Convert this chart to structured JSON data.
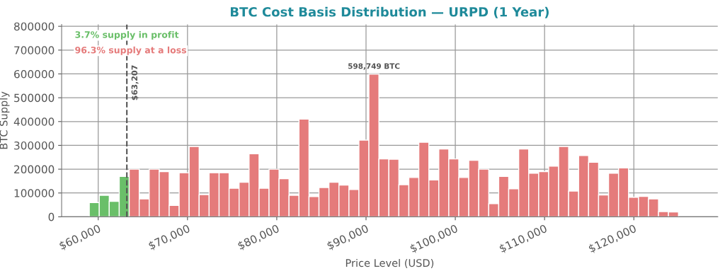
{
  "chart_data": {
    "type": "histogram",
    "title": "BTC Cost Basis Distribution — URPD (1 Year)",
    "xlabel": "Price Level (USD)",
    "ylabel": "BTC Supply",
    "bins": [
      59000,
      60119,
      61237,
      62356,
      63475,
      64593,
      65712,
      66831,
      67949,
      69068,
      70186,
      71305,
      72424,
      73542,
      74661,
      75780,
      76898,
      78017,
      79136,
      80254,
      81373,
      82492,
      83610,
      84729,
      85847,
      86966,
      88085,
      89203,
      90322,
      91441,
      92559,
      93678,
      94797,
      95915,
      97034,
      98153,
      99271,
      100390,
      101508,
      102627,
      103746,
      104864,
      105983,
      107102,
      108220,
      109339,
      110458,
      111576,
      112695,
      113814,
      114932,
      116051,
      117169,
      118288,
      119407,
      120525,
      121644,
      122763,
      123881,
      125000
    ],
    "values": [
      60000,
      90000,
      65000,
      170000,
      200000,
      75000,
      200000,
      190000,
      48000,
      185000,
      295000,
      93000,
      185000,
      185000,
      120000,
      145000,
      265000,
      120000,
      200000,
      160000,
      90000,
      410000,
      85000,
      123000,
      145000,
      133000,
      115000,
      322000,
      598749,
      243000,
      242000,
      135000,
      165000,
      313000,
      155000,
      285000,
      243000,
      165000,
      237000,
      200000,
      55000,
      170000,
      118000,
      285000,
      183000,
      190000,
      213000,
      295000,
      108000,
      257000,
      229000,
      92000,
      183000,
      205000,
      82000,
      86000,
      75000,
      22000,
      20000
    ],
    "colors": [
      "#6abf69",
      "#6abf69",
      "#6abf69",
      "#6abf69",
      "#e57b7b",
      "#e57b7b",
      "#e57b7b",
      "#e57b7b",
      "#e57b7b",
      "#e57b7b",
      "#e57b7b",
      "#e57b7b",
      "#e57b7b",
      "#e57b7b",
      "#e57b7b",
      "#e57b7b",
      "#e57b7b",
      "#e57b7b",
      "#e57b7b",
      "#e57b7b",
      "#e57b7b",
      "#e57b7b",
      "#e57b7b",
      "#e57b7b",
      "#e57b7b",
      "#e57b7b",
      "#e57b7b",
      "#e57b7b",
      "#e57b7b",
      "#e57b7b",
      "#e57b7b",
      "#e57b7b",
      "#e57b7b",
      "#e57b7b",
      "#e57b7b",
      "#e57b7b",
      "#e57b7b",
      "#e57b7b",
      "#e57b7b",
      "#e57b7b",
      "#e57b7b",
      "#e57b7b",
      "#e57b7b",
      "#e57b7b",
      "#e57b7b",
      "#e57b7b",
      "#e57b7b",
      "#e57b7b",
      "#e57b7b",
      "#e57b7b",
      "#e57b7b",
      "#e57b7b",
      "#e57b7b",
      "#e57b7b",
      "#e57b7b",
      "#e57b7b",
      "#e57b7b",
      "#e57b7b",
      "#e57b7b"
    ],
    "xlim": [
      55900,
      129400
    ],
    "xticks": [
      {
        "value": 60000,
        "label": "$60,000"
      },
      {
        "value": 70000,
        "label": "$70,000"
      },
      {
        "value": 80000,
        "label": "$80,000"
      },
      {
        "value": 90000,
        "label": "$90,000"
      },
      {
        "value": 100000,
        "label": "$100,000"
      },
      {
        "value": 110000,
        "label": "$110,000"
      },
      {
        "value": 120000,
        "label": "$120,000"
      }
    ],
    "ylim": [
      0,
      808000
    ],
    "yticks": [
      0,
      100000,
      200000,
      300000,
      400000,
      500000,
      600000,
      700000,
      800000
    ],
    "ref_lines": [
      {
        "axis": "x",
        "value": 63207,
        "label": "$63,207",
        "color": "#555555",
        "line_style": "dashed"
      }
    ],
    "annotations": [
      "3.7% supply in profit",
      "96.3% supply at a loss",
      {
        "text": "598,749 BTC",
        "x": 90881,
        "y": 598749
      }
    ],
    "grid": true
  }
}
